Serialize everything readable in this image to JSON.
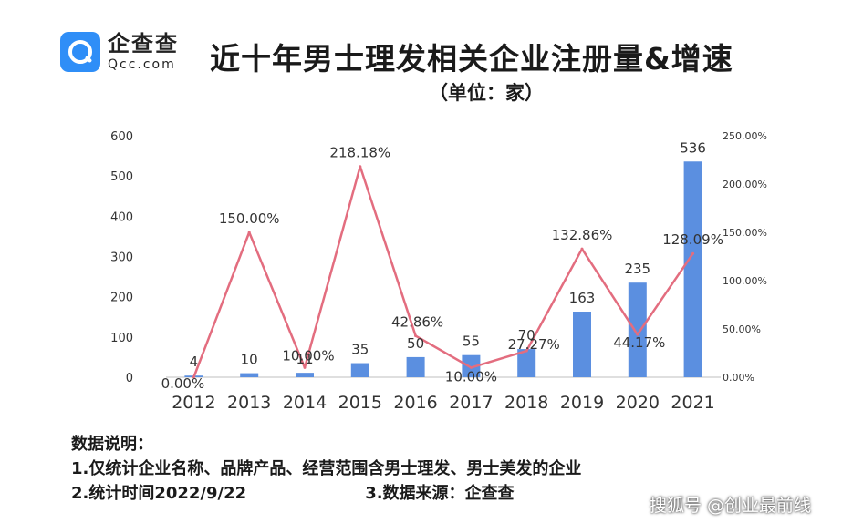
{
  "logo": {
    "cn": "企查查",
    "en": "Qcc.com"
  },
  "title": "近十年男士理发相关企业注册量&增速",
  "subtitle": "（单位：家）",
  "notes": {
    "heading": "数据说明：",
    "line1": "1.仅统计企业名称、品牌产品、经营范围含男士理发、男士美发的企业",
    "line2a": "2.统计时间2022/9/22",
    "line2b": "3.数据来源：企查查"
  },
  "watermark": "搜狐号 @创业最前线",
  "colors": {
    "bar": "#5b8fe0",
    "line": "#e36d7f",
    "axis": "#bfbfbf",
    "text": "#333333"
  },
  "chart_data": {
    "type": "bar",
    "categories": [
      "2012",
      "2013",
      "2014",
      "2015",
      "2016",
      "2017",
      "2018",
      "2019",
      "2020",
      "2021"
    ],
    "series": [
      {
        "values": [
          4,
          10,
          11,
          35,
          50,
          55,
          70,
          163,
          235,
          536
        ],
        "labels": [
          "4",
          "10",
          "11",
          "35",
          "50",
          "55",
          "70",
          "163",
          "235",
          "536"
        ]
      },
      {
        "type": "line",
        "values": [
          0,
          150,
          10,
          218.18,
          42.86,
          10,
          27.27,
          132.86,
          44.17,
          128.09
        ],
        "labels": [
          "0.00%",
          "150.00%",
          "10.00%",
          "218.18%",
          "42.86%",
          "10.00%",
          "27.27%",
          "132.86%",
          "44.17%",
          "128.09%"
        ]
      }
    ],
    "ylim": [
      0,
      600
    ],
    "yticks": [
      "0",
      "100",
      "200",
      "300",
      "400",
      "500",
      "600"
    ],
    "y2lim": [
      0,
      250
    ],
    "y2ticks": [
      "0.00%",
      "50.00%",
      "100.00%",
      "150.00%",
      "200.00%",
      "250.00%"
    ],
    "grid": false
  }
}
